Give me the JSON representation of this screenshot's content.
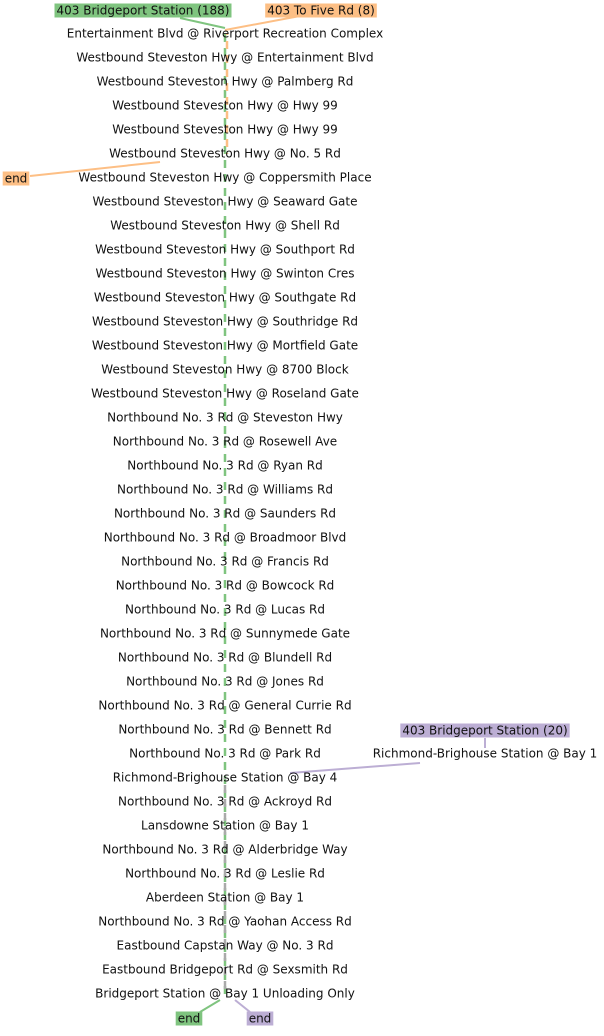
{
  "routes": [
    {
      "label": "403 Bridgeport Station (188)",
      "color": "#7fc47f"
    },
    {
      "label": "403 To Five Rd (8)",
      "color": "#fdbf85"
    },
    {
      "label": "403 Bridgeport Station (20)",
      "color": "#bcaed4"
    }
  ],
  "stops": [
    "Entertainment Blvd @ Riverport Recreation Complex",
    "Westbound Steveston Hwy @ Entertainment Blvd",
    "Westbound Steveston Hwy @ Palmberg Rd",
    "Westbound Steveston Hwy @ Hwy 99",
    "Westbound Steveston Hwy @ Hwy 99",
    "Westbound Steveston Hwy @ No. 5 Rd",
    "Westbound Steveston Hwy @ Coppersmith Place",
    "Westbound Steveston Hwy @ Seaward Gate",
    "Westbound Steveston Hwy @ Shell Rd",
    "Westbound Steveston Hwy @ Southport Rd",
    "Westbound Steveston Hwy @ Swinton Cres",
    "Westbound Steveston Hwy @ Southgate Rd",
    "Westbound Steveston Hwy @ Southridge Rd",
    "Westbound Steveston Hwy @ Mortfield Gate",
    "Westbound Steveston Hwy @ 8700 Block",
    "Westbound Steveston Hwy @ Roseland Gate",
    "Northbound No. 3 Rd @ Steveston Hwy",
    "Northbound No. 3 Rd @ Rosewell Ave",
    "Northbound No. 3 Rd @ Ryan Rd",
    "Northbound No. 3 Rd @ Williams Rd",
    "Northbound No. 3 Rd @ Saunders Rd",
    "Northbound No. 3 Rd @ Broadmoor Blvd",
    "Northbound No. 3 Rd @ Francis Rd",
    "Northbound No. 3 Rd @ Bowcock Rd",
    "Northbound No. 3 Rd @ Lucas Rd",
    "Northbound No. 3 Rd @ Sunnymede Gate",
    "Northbound No. 3 Rd @ Blundell Rd",
    "Northbound No. 3 Rd @ Jones Rd",
    "Northbound No. 3 Rd @ General Currie Rd",
    "Northbound No. 3 Rd @ Bennett Rd",
    "Northbound No. 3 Rd @ Park Rd",
    "Richmond-Brighouse Station @ Bay 4",
    "Northbound No. 3 Rd @ Ackroyd Rd",
    "Lansdowne Station @ Bay 1",
    "Northbound No. 3 Rd @ Alderbridge Way",
    "Northbound No. 3 Rd @ Leslie Rd",
    "Aberdeen Station @ Bay 1",
    "Northbound No. 3 Rd @ Yaohan Access Rd",
    "Eastbound Capstan Way @ No. 3 Rd",
    "Eastbound Bridgeport Rd @ Sexsmith Rd",
    "Bridgeport Station @ Bay 1 Unloading Only"
  ],
  "side_stop": "Richmond-Brighouse Station @ Bay 1",
  "ends": [
    "end",
    "end",
    "end"
  ]
}
